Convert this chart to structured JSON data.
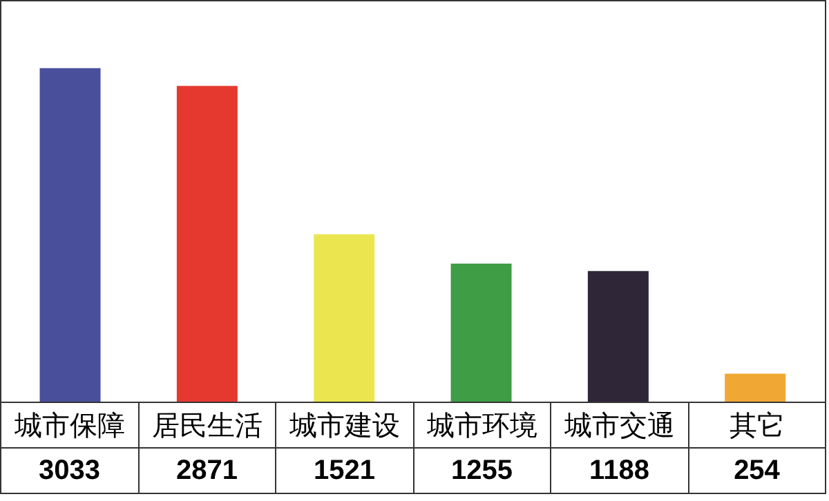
{
  "chart_data": {
    "type": "bar",
    "categories": [
      "城市保障",
      "居民生活",
      "城市建设",
      "城市环境",
      "城市交通",
      "其它"
    ],
    "values": [
      3033,
      2871,
      1521,
      1255,
      1188,
      254
    ],
    "colors": [
      "#4a4f9c",
      "#e5392f",
      "#ebe64f",
      "#3f9d45",
      "#2f2638",
      "#f0a733"
    ],
    "data_labels": true
  }
}
